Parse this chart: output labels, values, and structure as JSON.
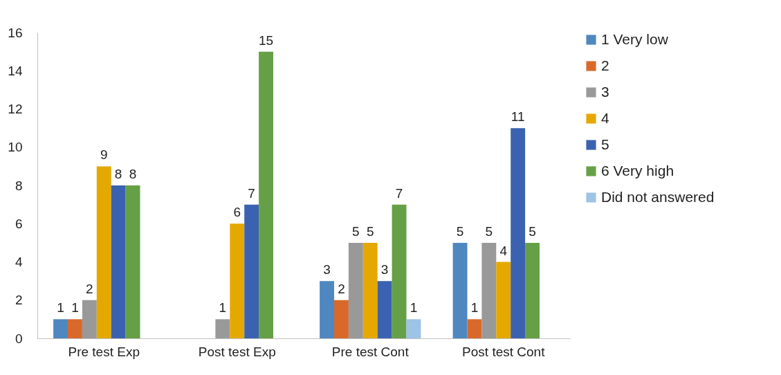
{
  "chart_data": {
    "type": "bar",
    "categories": [
      "Pre test Exp",
      "Post test Exp",
      "Pre test Cont",
      "Post test Cont"
    ],
    "series": [
      {
        "name": "1 Very low",
        "color": "#4f87c0",
        "values": [
          1,
          null,
          3,
          5
        ]
      },
      {
        "name": "2",
        "color": "#d9692a",
        "values": [
          1,
          null,
          2,
          1
        ]
      },
      {
        "name": "3",
        "color": "#999999",
        "values": [
          2,
          1,
          5,
          5
        ]
      },
      {
        "name": "4",
        "color": "#e5a800",
        "values": [
          9,
          6,
          5,
          4
        ]
      },
      {
        "name": "5",
        "color": "#3a62b0",
        "values": [
          8,
          7,
          3,
          11
        ]
      },
      {
        "name": "6 Very high",
        "color": "#66a046",
        "values": [
          8,
          15,
          7,
          5
        ]
      },
      {
        "name": "Did not  answered",
        "color": "#9dc3e6",
        "values": [
          null,
          null,
          1,
          null
        ]
      }
    ],
    "ylim": [
      0,
      16
    ],
    "yticks": [
      0,
      2,
      4,
      6,
      8,
      10,
      12,
      14,
      16
    ],
    "grid": false,
    "legend": "right",
    "data_labels": true
  }
}
